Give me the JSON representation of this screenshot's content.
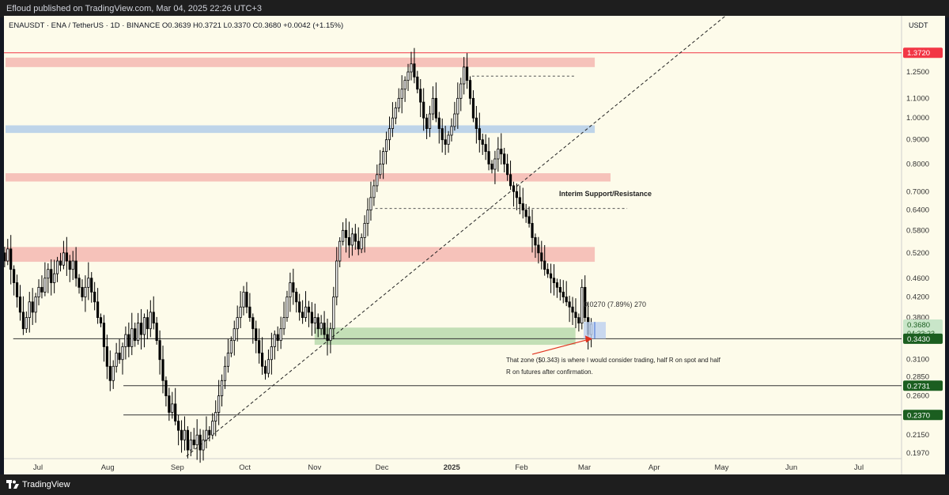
{
  "header": {
    "published": "Efloud published on TradingView.com, Mar 04, 2025 22:26 UTC+3"
  },
  "footer": {
    "brand": "TradingView"
  },
  "chart_data": {
    "type": "candlestick",
    "symbol_line": "ENAUSDT · ENA / TetherUS · 1D · BINANCE  O0.3639  H0.3721  L0.3370  C0.3680  +0.0042 (+1.15%)",
    "currency_label": "USDT",
    "y_scale": "log",
    "x_ticks": [
      {
        "label": "Jul",
        "date": "2024-07-01"
      },
      {
        "label": "Aug",
        "date": "2024-08-01"
      },
      {
        "label": "Sep",
        "date": "2024-09-01"
      },
      {
        "label": "Oct",
        "date": "2024-10-01"
      },
      {
        "label": "Nov",
        "date": "2024-11-01"
      },
      {
        "label": "Dec",
        "date": "2024-12-01"
      },
      {
        "label": "2025",
        "date": "2025-01-01",
        "bold": true
      },
      {
        "label": "Feb",
        "date": "2025-02-01"
      },
      {
        "label": "Mar",
        "date": "2025-03-01"
      },
      {
        "label": "Apr",
        "date": "2025-04-01"
      },
      {
        "label": "May",
        "date": "2025-05-01"
      },
      {
        "label": "Jun",
        "date": "2025-06-01"
      },
      {
        "label": "Jul",
        "date": "2025-07-01"
      }
    ],
    "y_ticks": [
      "1.2500",
      "1.1000",
      "1.0000",
      "0.9000",
      "0.8000",
      "0.7000",
      "0.6400",
      "0.5800",
      "0.5200",
      "0.4600",
      "0.4200",
      "0.3800",
      "0.3100",
      "0.2850",
      "0.2600",
      "0.2150",
      "0.1970"
    ],
    "price_labels": [
      {
        "text": "1.3720",
        "value": 1.372,
        "bg": "#f23645",
        "fg": "#ffffff"
      },
      {
        "text": "0.3680",
        "value": 0.368,
        "bg": "#c9e6c9",
        "fg": "#1b5e20",
        "sub": "04:33:23"
      },
      {
        "text": "0.3430",
        "value": 0.343,
        "bg": "#1b5e20",
        "fg": "#ffffff"
      },
      {
        "text": "0.2731",
        "value": 0.2731,
        "bg": "#1b5e20",
        "fg": "#ffffff"
      },
      {
        "text": "0.2370",
        "value": 0.237,
        "bg": "#1b5e20",
        "fg": "#ffffff"
      }
    ],
    "zones": [
      {
        "color": "#f5b7b1",
        "opacity": 0.85,
        "from": "2024-06-01",
        "to": "2025-02-18",
        "low": 1.28,
        "high": 1.34
      },
      {
        "color": "#b7cfe9",
        "opacity": 0.9,
        "from": "2024-06-01",
        "to": "2025-02-18",
        "low": 0.93,
        "high": 0.965
      },
      {
        "color": "#f5b7b1",
        "opacity": 0.85,
        "from": "2024-06-01",
        "to": "2025-02-25",
        "low": 0.735,
        "high": 0.765
      },
      {
        "color": "#f5b7b1",
        "opacity": 0.85,
        "from": "2024-06-08",
        "to": "2025-02-25",
        "low": 0.498,
        "high": 0.535
      },
      {
        "color": "#bcdcb0",
        "opacity": 0.9,
        "from": "2024-11-01",
        "to": "2025-02-25",
        "low": 0.333,
        "high": 0.362
      }
    ],
    "levels": [
      {
        "value": 1.372,
        "from": "2024-06-01",
        "to": "2025-07-30",
        "color": "#f23645",
        "width": 1
      },
      {
        "value": 0.343,
        "from": "2024-06-20",
        "to": "2025-07-30",
        "color": "#333333",
        "width": 1
      },
      {
        "value": 0.2731,
        "from": "2024-08-08",
        "to": "2025-07-30",
        "color": "#333333",
        "width": 1
      },
      {
        "value": 0.237,
        "from": "2024-08-08",
        "to": "2025-07-30",
        "color": "#333333",
        "width": 1
      }
    ],
    "dashed_levels": [
      {
        "value": 1.225,
        "from": "2025-01-10",
        "to": "2025-02-25"
      },
      {
        "value": 0.645,
        "from": "2024-11-28",
        "to": "2025-03-20"
      }
    ],
    "trendline": {
      "from": {
        "date": "2024-09-05",
        "price": 0.194
      },
      "to": {
        "date": "2025-05-08",
        "price": 1.72
      }
    },
    "annotations": {
      "interim": "Interim Support/Resistance",
      "measure": "0.0270 (7.89%) 270",
      "zone_note_line1": "That zone ($0.343) is where I would consider trading, half R on spot and half",
      "zone_note_line2": "R on futures after confirmation."
    },
    "candle_color": "#000000",
    "closes": [
      0.78,
      0.68,
      0.62,
      0.64,
      0.58,
      0.6,
      0.56,
      0.58,
      0.54,
      0.56,
      0.52,
      0.5,
      0.53,
      0.48,
      0.45,
      0.42,
      0.39,
      0.36,
      0.38,
      0.41,
      0.39,
      0.42,
      0.44,
      0.43,
      0.46,
      0.48,
      0.45,
      0.47,
      0.5,
      0.49,
      0.52,
      0.5,
      0.48,
      0.5,
      0.46,
      0.44,
      0.42,
      0.44,
      0.46,
      0.43,
      0.41,
      0.38,
      0.37,
      0.33,
      0.3,
      0.28,
      0.3,
      0.32,
      0.31,
      0.33,
      0.35,
      0.33,
      0.36,
      0.34,
      0.37,
      0.35,
      0.38,
      0.36,
      0.39,
      0.37,
      0.34,
      0.31,
      0.28,
      0.26,
      0.24,
      0.25,
      0.23,
      0.22,
      0.21,
      0.22,
      0.2,
      0.21,
      0.205,
      0.215,
      0.2,
      0.21,
      0.22,
      0.215,
      0.23,
      0.24,
      0.26,
      0.28,
      0.3,
      0.32,
      0.34,
      0.36,
      0.38,
      0.4,
      0.43,
      0.4,
      0.38,
      0.36,
      0.34,
      0.32,
      0.3,
      0.29,
      0.31,
      0.33,
      0.35,
      0.34,
      0.36,
      0.38,
      0.42,
      0.45,
      0.43,
      0.41,
      0.39,
      0.38,
      0.4,
      0.39,
      0.37,
      0.38,
      0.36,
      0.37,
      0.35,
      0.34,
      0.36,
      0.42,
      0.5,
      0.55,
      0.58,
      0.56,
      0.54,
      0.57,
      0.55,
      0.53,
      0.56,
      0.6,
      0.64,
      0.68,
      0.72,
      0.76,
      0.8,
      0.85,
      0.9,
      0.95,
      1.0,
      1.05,
      1.1,
      1.15,
      1.2,
      1.25,
      1.3,
      1.22,
      1.15,
      1.08,
      1.0,
      0.95,
      1.02,
      1.1,
      1.0,
      0.95,
      0.9,
      0.88,
      0.92,
      0.96,
      1.02,
      1.1,
      1.18,
      1.28,
      1.2,
      1.1,
      1.0,
      0.95,
      0.9,
      0.88,
      0.85,
      0.8,
      0.78,
      0.82,
      0.86,
      0.84,
      0.8,
      0.76,
      0.72,
      0.7,
      0.68,
      0.66,
      0.64,
      0.62,
      0.6,
      0.56,
      0.54,
      0.52,
      0.5,
      0.48,
      0.47,
      0.46,
      0.45,
      0.44,
      0.43,
      0.42,
      0.41,
      0.4,
      0.39,
      0.38,
      0.37,
      0.44,
      0.38,
      0.35,
      0.368
    ]
  }
}
